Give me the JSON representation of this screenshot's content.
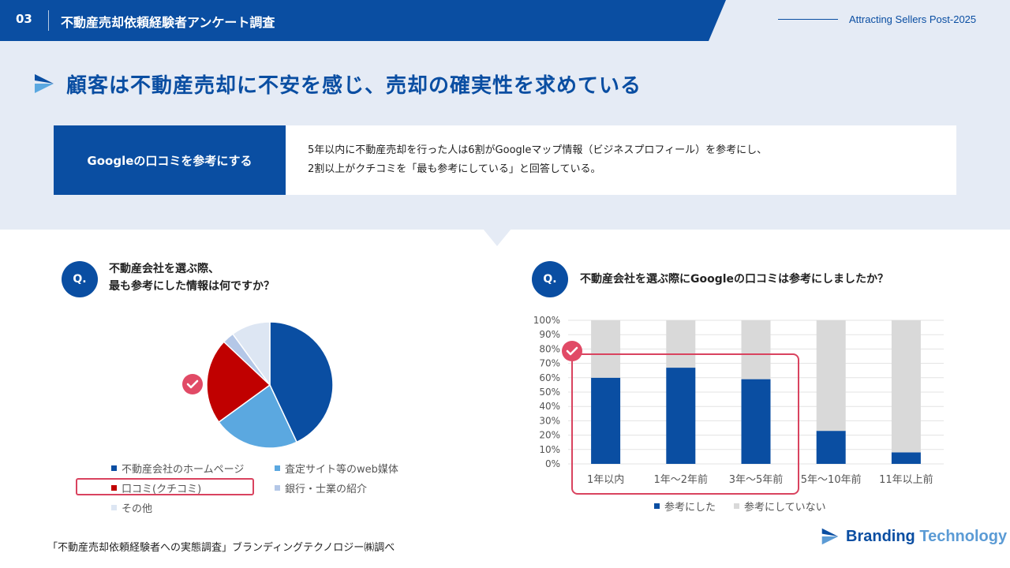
{
  "header": {
    "section_number": "03",
    "section_title": "不動産売却依頼経験者アンケート調査",
    "tagline": "Attracting Sellers Post-2025"
  },
  "main_title": "顧客は不動産売却に不安を感じ、売却の確実性を求めている",
  "info": {
    "label": "Googleの口コミを参考にする",
    "line1": "5年以内に不動産売却を行った人は6割がGoogleマップ情報（ビジネスプロフィール）を参考にし、",
    "line2": "2割以上がクチコミを「最も参考にしている」と回答している。"
  },
  "left_question": {
    "badge": "Q.",
    "line1": "不動産会社を選ぶ際、",
    "line2": "最も参考にした情報は何ですか？"
  },
  "right_question": {
    "badge": "Q.",
    "text": "不動産会社を選ぶ際にGoogleの口コミは参考にしましたか？"
  },
  "colors": {
    "primary": "#0a4ea2",
    "light_blue": "#5ba8e0",
    "red": "#c00000",
    "pale_blue": "#b4c7e7",
    "very_pale": "#dde6f3",
    "gray": "#d9d9d9",
    "highlight": "#d9435f"
  },
  "chart_data": [
    {
      "type": "pie",
      "title": "",
      "slices": [
        {
          "name": "不動産会社のホームページ",
          "value": 43,
          "color": "#0a4ea2"
        },
        {
          "name": "査定サイト等のweb媒体",
          "value": 22,
          "color": "#5ba8e0"
        },
        {
          "name": "口コミ(クチコミ)",
          "value": 22,
          "color": "#c00000"
        },
        {
          "name": "銀行・士業の紹介",
          "value": 3,
          "color": "#b4c7e7"
        },
        {
          "name": "その他",
          "value": 10,
          "color": "#dde6f3"
        }
      ],
      "highlighted": "口コミ(クチコミ)",
      "legend_position": "bottom"
    },
    {
      "type": "bar",
      "stacked": true,
      "categories": [
        "1年以内",
        "1年〜2年前",
        "3年〜5年前",
        "5年〜10年前",
        "11年以上前"
      ],
      "series": [
        {
          "name": "参考にした",
          "values": [
            60,
            67,
            59,
            23,
            8
          ],
          "color": "#0a4ea2"
        },
        {
          "name": "参考にしていない",
          "values": [
            40,
            33,
            41,
            77,
            92
          ],
          "color": "#d9d9d9"
        }
      ],
      "ylim": [
        0,
        100
      ],
      "yticks": [
        "0%",
        "10%",
        "20%",
        "30%",
        "40%",
        "50%",
        "60%",
        "70%",
        "80%",
        "90%",
        "100%"
      ],
      "grid": true,
      "legend_position": "bottom",
      "highlighted_categories": [
        "1年以内",
        "1年〜2年前",
        "3年〜5年前"
      ]
    }
  ],
  "footer": {
    "source": "「不動産売却依頼経験者への実態調査」ブランディングテクノロジー㈱調べ",
    "logo_word1": "Branding",
    "logo_word2": "Technology"
  }
}
